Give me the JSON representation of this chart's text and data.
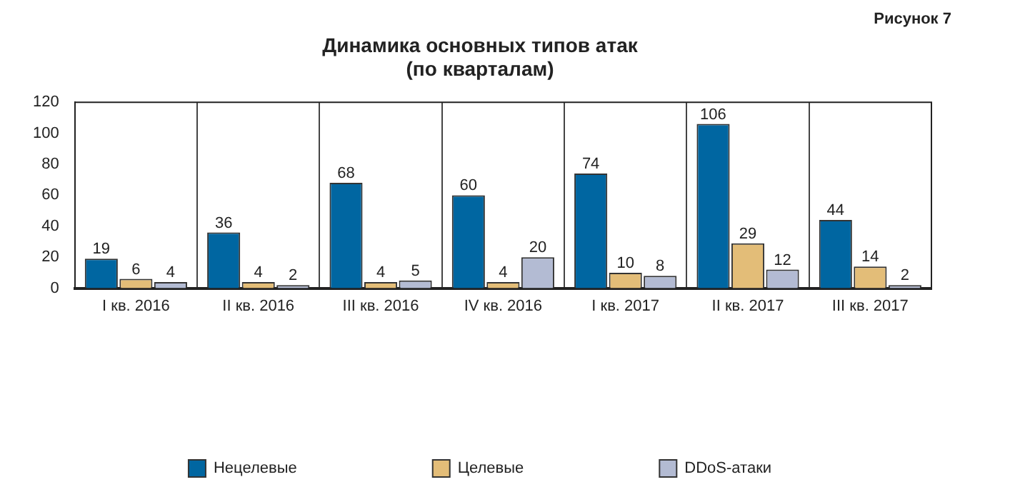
{
  "chart_data": {
    "type": "bar",
    "title": "Динамика основных типов атак",
    "subtitle": "(по кварталам)",
    "annotations": [
      "Рисунок 7"
    ],
    "categories": [
      "I кв. 2016",
      "II кв. 2016",
      "III кв. 2016",
      "IV кв. 2016",
      "I кв. 2017",
      "II кв. 2017",
      "III кв. 2017"
    ],
    "series": [
      {
        "name": "Нецелевые",
        "color": "#0066a1",
        "values": [
          19,
          36,
          68,
          60,
          74,
          106,
          44
        ]
      },
      {
        "name": "Целевые",
        "color": "#e3bd78",
        "values": [
          6,
          4,
          4,
          4,
          10,
          29,
          14
        ]
      },
      {
        "name": "DDoS-атаки",
        "color": "#b3bbd3",
        "values": [
          4,
          2,
          5,
          20,
          8,
          12,
          2
        ]
      }
    ],
    "ylim": [
      0,
      120
    ],
    "yticks": [
      0,
      20,
      40,
      60,
      80,
      100,
      120
    ],
    "grid": "x",
    "legend": "bottom",
    "data_labels": true
  }
}
